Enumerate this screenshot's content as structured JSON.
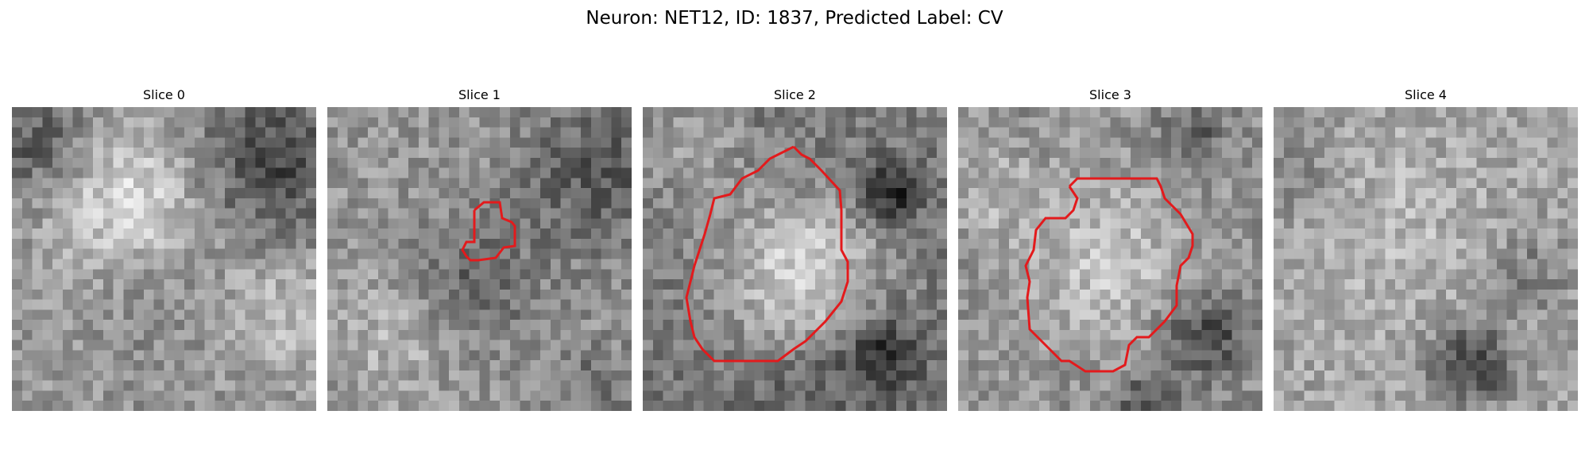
{
  "figure": {
    "title": "Neuron: NET12, ID: 1837, Predicted Label: CV",
    "contour_color": "#e31a1c"
  },
  "panels": [
    {
      "label": "Slice 0",
      "has_contour": false,
      "seed": 11
    },
    {
      "label": "Slice 1",
      "has_contour": true,
      "seed": 23
    },
    {
      "label": "Slice 2",
      "has_contour": true,
      "seed": 37
    },
    {
      "label": "Slice 3",
      "has_contour": true,
      "seed": 41
    },
    {
      "label": "Slice 4",
      "has_contour": false,
      "seed": 53
    }
  ]
}
